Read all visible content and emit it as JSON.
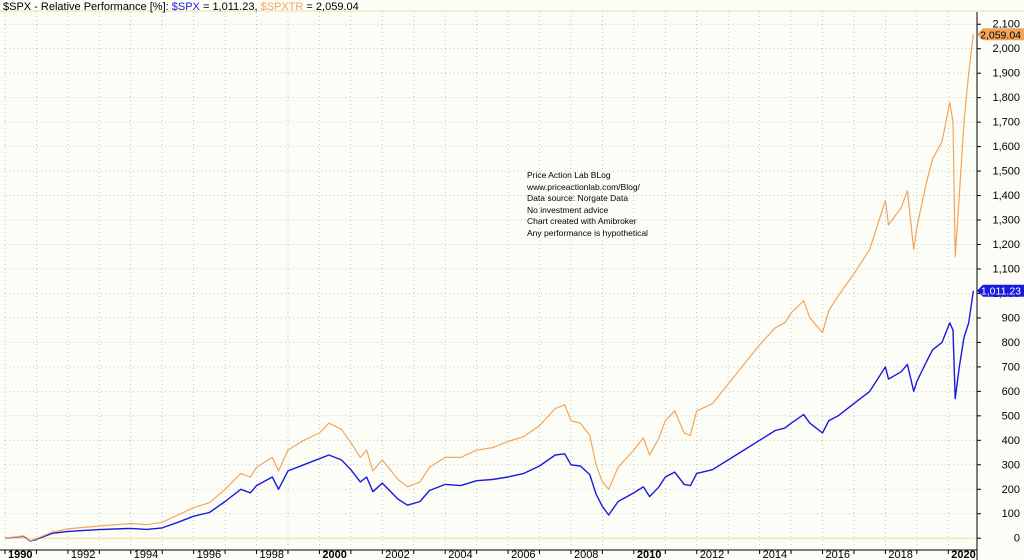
{
  "title": {
    "main": "$SPX - Relative Performance [%]:",
    "spx_label": "$SPX",
    "spx_sep": " = ",
    "spx_value": "1,011.23",
    "spxtr_label": "$SPXTR",
    "spxtr_sep": " = ",
    "spxtr_value": "2,059.04"
  },
  "annotations": [
    "Price Action Lab BLog",
    "www.priceactionlab.com/Blog/",
    "Data source: Norgate Data",
    "No investment advice",
    "Chart created with Amibroker",
    "Any performance is hypothetical"
  ],
  "colors": {
    "spx": "#1a1adc",
    "spxtr": "#f2a55a",
    "background": "#fdfdf8",
    "grid": "#b8b8b8",
    "zero_line": "#f0dc8c"
  },
  "chart_data": {
    "type": "line",
    "title": "$SPX - Relative Performance [%]",
    "xlabel": "",
    "ylabel": "",
    "ylim": [
      -40,
      2150
    ],
    "xlim": [
      1990.0,
      2020.85
    ],
    "y_ticks": [
      0,
      100,
      200,
      300,
      400,
      500,
      600,
      700,
      800,
      900,
      1000,
      1100,
      1200,
      1300,
      1400,
      1500,
      1600,
      1700,
      1800,
      1900,
      2000,
      2100
    ],
    "y_tick_labels": [
      "0",
      "100",
      "200",
      "300",
      "400",
      "500",
      "600",
      "700",
      "800",
      "900",
      "1,000",
      "1,100",
      "1,200",
      "1,300",
      "1,400",
      "1,500",
      "1,600",
      "1,700",
      "1,800",
      "1,900",
      "2,000",
      "2,100"
    ],
    "x_ticks": [
      1990,
      1992,
      1994,
      1996,
      1998,
      2000,
      2002,
      2004,
      2006,
      2008,
      2010,
      2012,
      2014,
      2016,
      2018,
      2020
    ],
    "x_tick_labels": [
      "1990",
      "1992",
      "1994",
      "1996",
      "1998",
      "2000",
      "2002",
      "2004",
      "2006",
      "2008",
      "2010",
      "2012",
      "2014",
      "2016",
      "2018",
      "2020"
    ],
    "x_major_ticks": [
      "1990",
      "2000",
      "2010",
      "2020"
    ],
    "grid": true,
    "legend": "title-bar",
    "series": [
      {
        "name": "$SPX",
        "color": "#1a1adc",
        "last_value_label": "1,011.23",
        "points": [
          [
            1990.0,
            0
          ],
          [
            1990.6,
            8
          ],
          [
            1990.8,
            -12
          ],
          [
            1991.0,
            -5
          ],
          [
            1991.5,
            20
          ],
          [
            1992.0,
            28
          ],
          [
            1993.0,
            35
          ],
          [
            1994.0,
            40
          ],
          [
            1994.5,
            36
          ],
          [
            1995.0,
            42
          ],
          [
            1995.5,
            65
          ],
          [
            1996.0,
            90
          ],
          [
            1996.5,
            105
          ],
          [
            1997.0,
            150
          ],
          [
            1997.5,
            200
          ],
          [
            1997.8,
            185
          ],
          [
            1998.0,
            215
          ],
          [
            1998.5,
            250
          ],
          [
            1998.7,
            200
          ],
          [
            1999.0,
            275
          ],
          [
            1999.5,
            300
          ],
          [
            2000.0,
            325
          ],
          [
            2000.3,
            340
          ],
          [
            2000.7,
            320
          ],
          [
            2001.0,
            280
          ],
          [
            2001.3,
            230
          ],
          [
            2001.5,
            250
          ],
          [
            2001.7,
            190
          ],
          [
            2002.0,
            225
          ],
          [
            2002.5,
            160
          ],
          [
            2002.8,
            135
          ],
          [
            2003.2,
            150
          ],
          [
            2003.5,
            195
          ],
          [
            2004.0,
            220
          ],
          [
            2004.5,
            215
          ],
          [
            2005.0,
            235
          ],
          [
            2005.5,
            240
          ],
          [
            2006.0,
            250
          ],
          [
            2006.5,
            265
          ],
          [
            2007.0,
            295
          ],
          [
            2007.5,
            340
          ],
          [
            2007.8,
            345
          ],
          [
            2008.0,
            300
          ],
          [
            2008.3,
            295
          ],
          [
            2008.6,
            260
          ],
          [
            2008.8,
            180
          ],
          [
            2009.0,
            130
          ],
          [
            2009.2,
            95
          ],
          [
            2009.5,
            150
          ],
          [
            2010.0,
            185
          ],
          [
            2010.3,
            210
          ],
          [
            2010.5,
            170
          ],
          [
            2010.8,
            210
          ],
          [
            2011.0,
            250
          ],
          [
            2011.3,
            270
          ],
          [
            2011.6,
            220
          ],
          [
            2011.8,
            215
          ],
          [
            2012.0,
            265
          ],
          [
            2012.5,
            280
          ],
          [
            2013.0,
            320
          ],
          [
            2013.5,
            360
          ],
          [
            2014.0,
            400
          ],
          [
            2014.5,
            440
          ],
          [
            2014.8,
            450
          ],
          [
            2015.0,
            470
          ],
          [
            2015.4,
            505
          ],
          [
            2015.6,
            470
          ],
          [
            2015.8,
            450
          ],
          [
            2016.0,
            430
          ],
          [
            2016.2,
            480
          ],
          [
            2016.5,
            500
          ],
          [
            2017.0,
            550
          ],
          [
            2017.5,
            600
          ],
          [
            2018.0,
            700
          ],
          [
            2018.1,
            650
          ],
          [
            2018.5,
            680
          ],
          [
            2018.7,
            710
          ],
          [
            2018.9,
            600
          ],
          [
            2019.0,
            640
          ],
          [
            2019.3,
            720
          ],
          [
            2019.5,
            770
          ],
          [
            2019.8,
            800
          ],
          [
            2020.05,
            880
          ],
          [
            2020.15,
            850
          ],
          [
            2020.22,
            570
          ],
          [
            2020.35,
            700
          ],
          [
            2020.5,
            820
          ],
          [
            2020.65,
            880
          ],
          [
            2020.8,
            1011.23
          ]
        ]
      },
      {
        "name": "$SPXTR",
        "color": "#f2a55a",
        "last_value_label": "2,059.04",
        "points": [
          [
            1990.0,
            0
          ],
          [
            1990.6,
            10
          ],
          [
            1990.8,
            -10
          ],
          [
            1991.0,
            -2
          ],
          [
            1991.5,
            25
          ],
          [
            1992.0,
            38
          ],
          [
            1993.0,
            50
          ],
          [
            1994.0,
            60
          ],
          [
            1994.5,
            55
          ],
          [
            1995.0,
            65
          ],
          [
            1995.5,
            95
          ],
          [
            1996.0,
            125
          ],
          [
            1996.5,
            145
          ],
          [
            1997.0,
            200
          ],
          [
            1997.5,
            265
          ],
          [
            1997.8,
            250
          ],
          [
            1998.0,
            290
          ],
          [
            1998.5,
            330
          ],
          [
            1998.7,
            275
          ],
          [
            1999.0,
            360
          ],
          [
            1999.5,
            400
          ],
          [
            2000.0,
            430
          ],
          [
            2000.3,
            470
          ],
          [
            2000.7,
            445
          ],
          [
            2001.0,
            390
          ],
          [
            2001.3,
            330
          ],
          [
            2001.5,
            360
          ],
          [
            2001.7,
            275
          ],
          [
            2002.0,
            320
          ],
          [
            2002.5,
            240
          ],
          [
            2002.8,
            210
          ],
          [
            2003.2,
            230
          ],
          [
            2003.5,
            290
          ],
          [
            2004.0,
            330
          ],
          [
            2004.5,
            330
          ],
          [
            2005.0,
            360
          ],
          [
            2005.5,
            370
          ],
          [
            2006.0,
            395
          ],
          [
            2006.5,
            415
          ],
          [
            2007.0,
            460
          ],
          [
            2007.5,
            530
          ],
          [
            2007.8,
            545
          ],
          [
            2008.0,
            480
          ],
          [
            2008.3,
            470
          ],
          [
            2008.6,
            420
          ],
          [
            2008.8,
            300
          ],
          [
            2009.0,
            230
          ],
          [
            2009.2,
            200
          ],
          [
            2009.5,
            290
          ],
          [
            2010.0,
            360
          ],
          [
            2010.3,
            410
          ],
          [
            2010.5,
            340
          ],
          [
            2010.8,
            410
          ],
          [
            2011.0,
            480
          ],
          [
            2011.3,
            520
          ],
          [
            2011.6,
            430
          ],
          [
            2011.8,
            420
          ],
          [
            2012.0,
            520
          ],
          [
            2012.5,
            550
          ],
          [
            2013.0,
            630
          ],
          [
            2013.5,
            710
          ],
          [
            2014.0,
            790
          ],
          [
            2014.5,
            860
          ],
          [
            2014.8,
            880
          ],
          [
            2015.0,
            920
          ],
          [
            2015.4,
            970
          ],
          [
            2015.6,
            900
          ],
          [
            2015.8,
            870
          ],
          [
            2016.0,
            840
          ],
          [
            2016.2,
            930
          ],
          [
            2016.5,
            990
          ],
          [
            2017.0,
            1080
          ],
          [
            2017.5,
            1180
          ],
          [
            2018.0,
            1380
          ],
          [
            2018.1,
            1280
          ],
          [
            2018.5,
            1350
          ],
          [
            2018.7,
            1420
          ],
          [
            2018.9,
            1180
          ],
          [
            2019.0,
            1270
          ],
          [
            2019.3,
            1450
          ],
          [
            2019.5,
            1550
          ],
          [
            2019.8,
            1620
          ],
          [
            2020.05,
            1780
          ],
          [
            2020.15,
            1700
          ],
          [
            2020.22,
            1150
          ],
          [
            2020.35,
            1400
          ],
          [
            2020.5,
            1700
          ],
          [
            2020.65,
            1900
          ],
          [
            2020.8,
            2059.04
          ]
        ]
      }
    ]
  }
}
